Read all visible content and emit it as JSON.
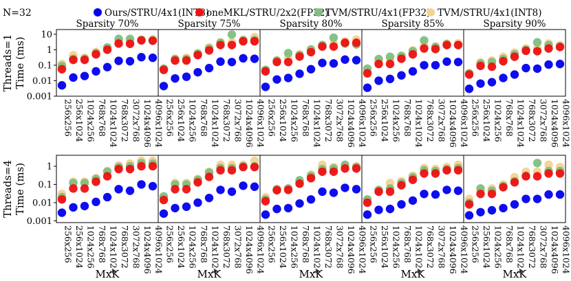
{
  "chart_data": {
    "type": "scatter",
    "note_label": "N=32",
    "legend": [
      {
        "name": "Ours/STRU/4x1(INT8)",
        "color": "#0000ee"
      },
      {
        "name": "oneMKL/STRU/2x2(FP32)",
        "color": "#ee1111"
      },
      {
        "name": "TVM/STRU/4x1(FP32)",
        "color": "#7fbf7f"
      },
      {
        "name": "TVM/STRU/4x1(INT8)",
        "color": "#f7d28f"
      }
    ],
    "categories": [
      "256x256",
      "256x1024",
      "1024x256",
      "768x768",
      "1024x1024",
      "768x3072",
      "3072x768",
      "1024x4096",
      "4096x1024"
    ],
    "xlabel": "MxK",
    "ylabel": "Time (ms)",
    "yscale": "log",
    "rows": [
      {
        "label": "Threads=1",
        "ylim": [
          0.001,
          20
        ],
        "yticks": [
          {
            "v": 0.001,
            "t": "0.001"
          },
          {
            "v": 0.01,
            "t": "0.01"
          },
          {
            "v": 0.1,
            "t": "0.1"
          },
          {
            "v": 1,
            "t": "1"
          },
          {
            "v": 10,
            "t": "10"
          }
        ],
        "panels": [
          {
            "title": "Sparsity 70%",
            "series": [
              {
                "name": "Ours/STRU/4x1(INT8)",
                "values": [
                  0.005,
                  0.016,
                  0.02,
                  0.04,
                  0.075,
                  0.19,
                  0.18,
                  0.33,
                  0.3
                ]
              },
              {
                "name": "oneMKL/STRU/2x2(FP32)",
                "values": [
                  0.055,
                  0.22,
                  0.22,
                  0.5,
                  1.0,
                  2.5,
                  2.4,
                  4.0,
                  3.8
                ]
              },
              {
                "name": "TVM/STRU/4x1(FP32)",
                "values": [
                  0.09,
                  0.26,
                  0.26,
                  0.6,
                  1.4,
                  5.0,
                  5.0,
                  4.2,
                  4.0
                ]
              },
              {
                "name": "TVM/STRU/4x1(INT8)",
                "values": [
                  0.12,
                  0.45,
                  0.3,
                  0.7,
                  1.4,
                  3.5,
                  3.5,
                  4.5,
                  4.8
                ]
              }
            ]
          },
          {
            "title": "Sparsity 75%",
            "series": [
              {
                "name": "Ours/STRU/4x1(INT8)",
                "values": [
                  0.0045,
                  0.014,
                  0.018,
                  0.035,
                  0.065,
                  0.17,
                  0.16,
                  0.28,
                  0.26
                ]
              },
              {
                "name": "oneMKL/STRU/2x2(FP32)",
                "values": [
                  0.05,
                  0.2,
                  0.2,
                  0.45,
                  0.9,
                  2.0,
                  2.0,
                  3.5,
                  3.5
                ]
              },
              {
                "name": "TVM/STRU/4x1(FP32)",
                "values": [
                  0.06,
                  0.25,
                  0.25,
                  0.55,
                  1.2,
                  2.8,
                  9.5,
                  4.0,
                  4.2
                ]
              },
              {
                "name": "TVM/STRU/4x1(INT8)",
                "values": [
                  0.06,
                  0.26,
                  0.3,
                  0.6,
                  1.4,
                  3.0,
                  3.0,
                  4.5,
                  6.5
                ]
              }
            ]
          },
          {
            "title": "Sparsity 80%",
            "series": [
              {
                "name": "Ours/STRU/4x1(INT8)",
                "values": [
                  0.004,
                  0.012,
                  0.015,
                  0.028,
                  0.055,
                  0.14,
                  0.13,
                  0.23,
                  0.21
                ]
              },
              {
                "name": "oneMKL/STRU/2x2(FP32)",
                "values": [
                  0.04,
                  0.16,
                  0.16,
                  0.36,
                  0.7,
                  1.6,
                  1.6,
                  2.8,
                  2.8
                ]
              },
              {
                "name": "TVM/STRU/4x1(FP32)",
                "values": [
                  0.05,
                  0.2,
                  0.6,
                  0.45,
                  1.0,
                  2.0,
                  6.0,
                  2.5,
                  2.2
                ]
              },
              {
                "name": "TVM/STRU/4x1(INT8)",
                "values": [
                  0.05,
                  0.2,
                  0.28,
                  0.5,
                  1.1,
                  2.0,
                  2.4,
                  3.5,
                  4.5
                ]
              }
            ]
          },
          {
            "title": "Sparsity 85%",
            "series": [
              {
                "name": "Ours/STRU/4x1(INT8)",
                "values": [
                  0.0035,
                  0.01,
                  0.013,
                  0.022,
                  0.04,
                  0.1,
                  0.1,
                  0.17,
                  0.16
                ]
              },
              {
                "name": "oneMKL/STRU/2x2(FP32)",
                "values": [
                  0.03,
                  0.12,
                  0.12,
                  0.26,
                  0.5,
                  1.2,
                  1.1,
                  2.0,
                  2.0
                ]
              },
              {
                "name": "TVM/STRU/4x1(FP32)",
                "values": [
                  0.06,
                  0.25,
                  0.35,
                  0.4,
                  0.8,
                  4.0,
                  1.5,
                  2.2,
                  2.0
                ]
              },
              {
                "name": "TVM/STRU/4x1(INT8)",
                "values": [
                  0.035,
                  0.15,
                  0.2,
                  0.35,
                  0.9,
                  1.8,
                  1.6,
                  2.5,
                  2.6
                ]
              }
            ]
          },
          {
            "title": "Sparsity 90%",
            "series": [
              {
                "name": "Ours/STRU/4x1(INT8)",
                "values": [
                  0.003,
                  0.0065,
                  0.008,
                  0.015,
                  0.025,
                  0.065,
                  0.06,
                  0.11,
                  0.12
                ]
              },
              {
                "name": "oneMKL/STRU/2x2(FP32)",
                "values": [
                  0.025,
                  0.09,
                  0.08,
                  0.18,
                  0.35,
                  0.85,
                  0.8,
                  1.2,
                  1.5
                ]
              },
              {
                "name": "TVM/STRU/4x1(FP32)",
                "values": [
                  0.03,
                  0.13,
                  0.16,
                  0.25,
                  0.5,
                  1.0,
                  3.0,
                  2.0,
                  1.6
                ]
              },
              {
                "name": "TVM/STRU/4x1(INT8)",
                "values": [
                  0.03,
                  0.15,
                  0.2,
                  0.35,
                  0.65,
                  1.2,
                  1.2,
                  2.5,
                  2.0
                ]
              }
            ]
          }
        ]
      },
      {
        "label": "Threads=4",
        "ylim": [
          0.0008,
          4
        ],
        "yticks": [
          {
            "v": 0.001,
            "t": "0.001"
          },
          {
            "v": 0.01,
            "t": "0.01"
          },
          {
            "v": 0.1,
            "t": "0.1"
          },
          {
            "v": 1,
            "t": "1"
          }
        ],
        "panels": [
          {
            "title": "",
            "series": [
              {
                "name": "Ours/STRU/4x1(INT8)",
                "values": [
                  0.0028,
                  0.0055,
                  0.0065,
                  0.011,
                  0.02,
                  0.055,
                  0.045,
                  0.1,
                  0.08
                ]
              },
              {
                "name": "oneMKL/STRU/2x2(FP32)",
                "values": [
                  0.015,
                  0.06,
                  0.06,
                  0.14,
                  0.28,
                  0.7,
                  0.7,
                  1.0,
                  1.0
                ]
              },
              {
                "name": "TVM/STRU/4x1(FP32)",
                "values": [
                  0.02,
                  0.12,
                  0.12,
                  0.2,
                  0.5,
                  0.9,
                  1.0,
                  1.5,
                  1.4
                ]
              },
              {
                "name": "TVM/STRU/4x1(INT8)",
                "values": [
                  0.03,
                  0.14,
                  0.14,
                  0.22,
                  0.55,
                  1.1,
                  1.4,
                  2.0,
                  2.0
                ]
              }
            ]
          },
          {
            "title": "",
            "series": [
              {
                "name": "Ours/STRU/4x1(INT8)",
                "values": [
                  0.0025,
                  0.005,
                  0.006,
                  0.01,
                  0.018,
                  0.05,
                  0.04,
                  0.085,
                  0.075
                ]
              },
              {
                "name": "oneMKL/STRU/2x2(FP32)",
                "values": [
                  0.014,
                  0.055,
                  0.055,
                  0.13,
                  0.26,
                  0.6,
                  0.6,
                  0.9,
                  0.9
                ]
              },
              {
                "name": "TVM/STRU/4x1(FP32)",
                "values": [
                  0.022,
                  0.1,
                  0.1,
                  0.18,
                  0.45,
                  0.8,
                  0.8,
                  1.0,
                  1.0
                ]
              },
              {
                "name": "TVM/STRU/4x1(INT8)",
                "values": [
                  0.018,
                  0.12,
                  0.12,
                  0.2,
                  0.5,
                  1.2,
                  1.2,
                  1.2,
                  2.0
                ]
              }
            ]
          },
          {
            "title": "",
            "series": [
              {
                "name": "Ours/STRU/4x1(INT8)",
                "values": [
                  0.0022,
                  0.0045,
                  0.005,
                  0.009,
                  0.015,
                  0.04,
                  0.035,
                  0.065,
                  0.055
                ]
              },
              {
                "name": "oneMKL/STRU/2x2(FP32)",
                "values": [
                  0.012,
                  0.048,
                  0.05,
                  0.11,
                  0.22,
                  0.5,
                  0.5,
                  0.75,
                  0.75
                ]
              },
              {
                "name": "TVM/STRU/4x1(FP32)",
                "values": [
                  0.015,
                  0.055,
                  0.06,
                  0.17,
                  0.3,
                  0.7,
                  0.75,
                  1.2,
                  0.9
                ]
              },
              {
                "name": "TVM/STRU/4x1(INT8)",
                "values": [
                  0.02,
                  0.055,
                  0.06,
                  0.13,
                  0.35,
                  1.2,
                  0.9,
                  1.0,
                  1.0
                ]
              }
            ]
          },
          {
            "title": "",
            "series": [
              {
                "name": "Ours/STRU/4x1(INT8)",
                "values": [
                  0.0022,
                  0.004,
                  0.0045,
                  0.008,
                  0.013,
                  0.03,
                  0.028,
                  0.05,
                  0.045
                ]
              },
              {
                "name": "oneMKL/STRU/2x2(FP32)",
                "values": [
                  0.01,
                  0.04,
                  0.04,
                  0.09,
                  0.18,
                  0.4,
                  0.4,
                  0.6,
                  0.6
                ]
              },
              {
                "name": "TVM/STRU/4x1(FP32)",
                "values": [
                  0.015,
                  0.05,
                  0.06,
                  0.12,
                  0.25,
                  0.6,
                  0.55,
                  0.7,
                  0.8
                ]
              },
              {
                "name": "TVM/STRU/4x1(INT8)",
                "values": [
                  0.015,
                  0.05,
                  0.12,
                  0.15,
                  0.3,
                  0.8,
                  0.7,
                  0.9,
                  1.2
                ]
              }
            ]
          },
          {
            "title": "",
            "series": [
              {
                "name": "Ours/STRU/4x1(INT8)",
                "values": [
                  0.002,
                  0.003,
                  0.0038,
                  0.005,
                  0.008,
                  0.016,
                  0.016,
                  0.028,
                  0.028
                ]
              },
              {
                "name": "oneMKL/STRU/2x2(FP32)",
                "values": [
                  0.008,
                  0.03,
                  0.03,
                  0.07,
                  0.13,
                  0.28,
                  0.28,
                  0.4,
                  0.4
                ]
              },
              {
                "name": "TVM/STRU/4x1(FP32)",
                "values": [
                  0.01,
                  0.06,
                  0.045,
                  0.08,
                  0.15,
                  0.3,
                  1.5,
                  0.55,
                  0.55
                ]
              },
              {
                "name": "TVM/STRU/4x1(INT8)",
                "values": [
                  0.016,
                  0.045,
                  0.06,
                  0.1,
                  0.25,
                  0.5,
                  0.5,
                  1.2,
                  0.9
                ]
              }
            ]
          }
        ]
      }
    ]
  }
}
